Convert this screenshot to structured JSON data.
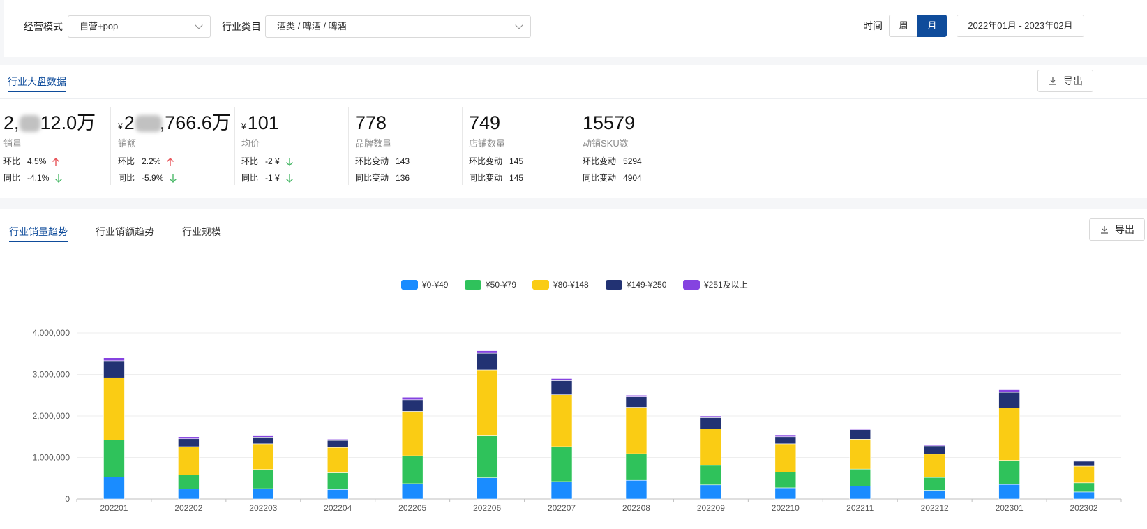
{
  "filters": {
    "mode_label": "经营模式",
    "mode_value": "自营+pop",
    "category_label": "行业类目",
    "category_value": "酒类 / 啤酒 / 啤酒",
    "time_label": "时间",
    "week_label": "周",
    "month_label": "月",
    "date_range": "2022年01月 - 2023年02月"
  },
  "overview": {
    "tab": "行业大盘数据",
    "export_label": "导出",
    "metrics": [
      {
        "value_prefix": "2,",
        "value_suffix": "12.0万",
        "name": "销量",
        "row1_label": "环比",
        "row1_value": "4.5%",
        "row1_dir": "up",
        "row2_label": "同比",
        "row2_value": "-4.1%",
        "row2_dir": "down"
      },
      {
        "currency": "¥",
        "value_prefix": "2",
        "value_suffix": ",766.6万",
        "name": "销额",
        "row1_label": "环比",
        "row1_value": "2.2%",
        "row1_dir": "up",
        "row2_label": "同比",
        "row2_value": "-5.9%",
        "row2_dir": "down"
      },
      {
        "currency": "¥",
        "value": "101",
        "name": "均价",
        "row1_label": "环比",
        "row1_value": "-2 ¥",
        "row1_dir": "down",
        "row2_label": "同比",
        "row2_value": "-1 ¥",
        "row2_dir": "down"
      },
      {
        "value": "778",
        "name": "品牌数量",
        "row1_label": "环比变动",
        "row1_value": "143",
        "row2_label": "同比变动",
        "row2_value": "136"
      },
      {
        "value": "749",
        "name": "店铺数量",
        "row1_label": "环比变动",
        "row1_value": "145",
        "row2_label": "同比变动",
        "row2_value": "145"
      },
      {
        "value": "15579",
        "name": "动销SKU数",
        "row1_label": "环比变动",
        "row1_value": "5294",
        "row2_label": "同比变动",
        "row2_value": "4904"
      }
    ]
  },
  "trend": {
    "tabs": [
      "行业销量趋势",
      "行业销额趋势",
      "行业规模"
    ],
    "active_tab": 0,
    "export_label": "导出"
  },
  "colors": {
    "accent": "#0f4c9b",
    "up": "#e8555a",
    "down": "#4cb96a"
  },
  "chart_data": {
    "type": "bar",
    "stacked": true,
    "categories": [
      "202201",
      "202202",
      "202203",
      "202204",
      "202205",
      "202206",
      "202207",
      "202208",
      "202209",
      "202210",
      "202211",
      "202212",
      "202301",
      "202302"
    ],
    "series": [
      {
        "name": "¥0-¥49",
        "color": "#1a8cff",
        "values": [
          530000,
          240000,
          250000,
          230000,
          370000,
          510000,
          420000,
          450000,
          340000,
          270000,
          310000,
          210000,
          350000,
          170000
        ]
      },
      {
        "name": "¥50-¥79",
        "color": "#2fc25b",
        "values": [
          890000,
          340000,
          460000,
          400000,
          670000,
          1010000,
          840000,
          640000,
          470000,
          380000,
          410000,
          310000,
          580000,
          220000
        ]
      },
      {
        "name": "¥80-¥148",
        "color": "#facc14",
        "values": [
          1500000,
          680000,
          620000,
          610000,
          1070000,
          1590000,
          1250000,
          1120000,
          880000,
          680000,
          720000,
          560000,
          1260000,
          400000
        ]
      },
      {
        "name": "¥149-¥250",
        "color": "#223273",
        "values": [
          410000,
          190000,
          160000,
          170000,
          280000,
          400000,
          340000,
          250000,
          270000,
          170000,
          230000,
          200000,
          380000,
          120000
        ]
      },
      {
        "name": "¥251及以上",
        "color": "#8543e0",
        "values": [
          70000,
          50000,
          30000,
          30000,
          60000,
          60000,
          50000,
          40000,
          40000,
          30000,
          30000,
          30000,
          60000,
          20000
        ]
      }
    ],
    "yticks": [
      0,
      1000000,
      2000000,
      3000000,
      4000000
    ],
    "ytick_labels": [
      "0",
      "1,000,000",
      "2,000,000",
      "3,000,000",
      "4,000,000"
    ],
    "ylim": [
      0,
      4000000
    ],
    "legend_position": "top-center",
    "grid": true
  }
}
